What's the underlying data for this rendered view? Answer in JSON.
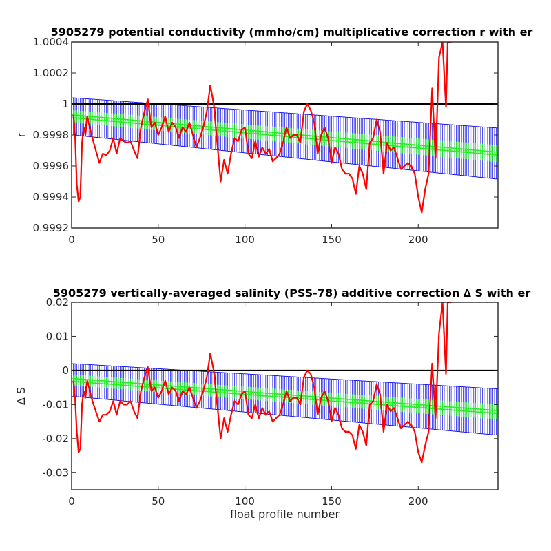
{
  "chart_data": [
    {
      "type": "line",
      "title": "5905279 potential conductivity (mmho/cm) multiplicative correction r with er",
      "xlabel": "",
      "ylabel": "r",
      "xlim": [
        0,
        246
      ],
      "ylim": [
        0.9992,
        1.0004
      ],
      "xticks": [
        0,
        50,
        100,
        150,
        200
      ],
      "yticks": [
        0.9992,
        0.9994,
        0.9996,
        0.9998,
        1,
        1.0002,
        1.0004
      ],
      "ytick_labels": [
        "0.9992",
        "0.9994",
        "0.9996",
        "0.9998",
        "1",
        "1.0002",
        "1.0004"
      ],
      "reference_line": 1,
      "fit": {
        "x_start": 1,
        "x_end": 246,
        "center_start": 0.99992,
        "center_end": 0.99968,
        "err_start": 0.00012,
        "err_end": 0.000165,
        "inner_start": 4e-05,
        "inner_end": 5.5e-05
      },
      "series": [
        {
          "style": "red-line",
          "x": [
            1,
            2,
            3,
            4,
            5,
            6,
            7,
            8,
            9,
            10,
            12,
            14,
            16,
            18,
            20,
            22,
            24,
            26,
            28,
            30,
            32,
            34,
            36,
            38,
            40,
            42,
            44,
            46,
            48,
            50,
            52,
            54,
            56,
            58,
            60,
            62,
            64,
            66,
            68,
            70,
            72,
            74,
            76,
            78,
            80,
            82,
            84,
            86,
            88,
            90,
            92,
            94,
            96,
            98,
            100,
            102,
            104,
            106,
            108,
            110,
            112,
            114,
            116,
            118,
            120,
            122,
            124,
            126,
            128,
            130,
            132,
            134,
            136,
            138,
            140,
            142,
            144,
            146,
            148,
            150,
            152,
            154,
            156,
            158,
            160,
            162,
            164,
            166,
            168,
            170,
            172,
            174,
            176,
            178,
            180,
            182,
            184,
            186,
            188,
            190,
            192,
            194,
            196,
            198,
            200,
            202,
            204,
            206,
            208,
            210,
            212,
            214,
            216,
            217,
            218,
            219
          ],
          "y": [
            0.99993,
            0.9998,
            0.99948,
            0.99937,
            0.9994,
            0.99975,
            0.99985,
            0.9998,
            0.99992,
            0.99987,
            0.99978,
            0.9997,
            0.99962,
            0.99968,
            0.99967,
            0.9997,
            0.99978,
            0.99968,
            0.99978,
            0.99976,
            0.99975,
            0.99976,
            0.9997,
            0.99965,
            0.99985,
            0.99995,
            1.00003,
            0.99985,
            0.99988,
            0.9998,
            0.99985,
            0.99992,
            0.99982,
            0.99988,
            0.99985,
            0.99978,
            0.99985,
            0.99982,
            0.99988,
            0.9998,
            0.99972,
            0.99978,
            0.99985,
            0.99995,
            1.00012,
            1.0,
            0.99975,
            0.9995,
            0.99964,
            0.99955,
            0.99968,
            0.99978,
            0.99976,
            0.99983,
            0.99985,
            0.99968,
            0.99965,
            0.99976,
            0.99966,
            0.99972,
            0.99968,
            0.99971,
            0.99963,
            0.99965,
            0.99968,
            0.99975,
            0.99985,
            0.99978,
            0.9998,
            0.9998,
            0.99975,
            0.99995,
            1.0,
            0.99996,
            0.99988,
            0.99968,
            0.9998,
            0.99985,
            0.99978,
            0.99962,
            0.99972,
            0.99968,
            0.99958,
            0.99955,
            0.99955,
            0.99952,
            0.99942,
            0.9996,
            0.99955,
            0.99945,
            0.99975,
            0.99978,
            0.9999,
            0.99982,
            0.99955,
            0.99975,
            0.9997,
            0.99972,
            0.99965,
            0.99958,
            0.9996,
            0.99962,
            0.9996,
            0.99955,
            0.9994,
            0.9993,
            0.99945,
            0.99955,
            1.0001,
            0.99965,
            1.0003,
            1.0004,
            0.99998,
            1.0004,
            1.0004,
            1.0004
          ]
        }
      ]
    },
    {
      "type": "line",
      "title": "5905279 vertically-averaged salinity (PSS-78) additive correction ∆ S with er",
      "xlabel": "float profile number",
      "ylabel": "∆ S",
      "xlim": [
        0,
        246
      ],
      "ylim": [
        -0.035,
        0.02
      ],
      "xticks": [
        0,
        50,
        100,
        150,
        200
      ],
      "yticks": [
        -0.03,
        -0.02,
        -0.01,
        0,
        0.01,
        0.02
      ],
      "ytick_labels": [
        "-0.03",
        "-0.02",
        "-0.01",
        "0",
        "0.01",
        "0.02"
      ],
      "reference_line": 0,
      "fit": {
        "x_start": 1,
        "x_end": 246,
        "center_start": -0.0028,
        "center_end": -0.0122,
        "err_start": 0.0048,
        "err_end": 0.0068,
        "inner_start": 0.0016,
        "inner_end": 0.0022
      },
      "series": [
        {
          "style": "red-line",
          "x": [
            1,
            2,
            3,
            4,
            5,
            6,
            7,
            8,
            9,
            10,
            12,
            14,
            16,
            18,
            20,
            22,
            24,
            26,
            28,
            30,
            32,
            34,
            36,
            38,
            40,
            42,
            44,
            46,
            48,
            50,
            52,
            54,
            56,
            58,
            60,
            62,
            64,
            66,
            68,
            70,
            72,
            74,
            76,
            78,
            80,
            82,
            84,
            86,
            88,
            90,
            92,
            94,
            96,
            98,
            100,
            102,
            104,
            106,
            108,
            110,
            112,
            114,
            116,
            118,
            120,
            122,
            124,
            126,
            128,
            130,
            132,
            134,
            136,
            138,
            140,
            142,
            144,
            146,
            148,
            150,
            152,
            154,
            156,
            158,
            160,
            162,
            164,
            166,
            168,
            170,
            172,
            174,
            176,
            178,
            180,
            182,
            184,
            186,
            188,
            190,
            192,
            194,
            196,
            198,
            200,
            202,
            204,
            206,
            208,
            210,
            212,
            214,
            216,
            217,
            218,
            219
          ],
          "y": [
            -0.003,
            -0.008,
            -0.018,
            -0.024,
            -0.023,
            -0.01,
            -0.006,
            -0.008,
            -0.003,
            -0.005,
            -0.009,
            -0.012,
            -0.015,
            -0.013,
            -0.013,
            -0.012,
            -0.009,
            -0.013,
            -0.009,
            -0.01,
            -0.01,
            -0.009,
            -0.012,
            -0.014,
            -0.006,
            -0.002,
            0.001,
            -0.006,
            -0.005,
            -0.008,
            -0.006,
            -0.003,
            -0.007,
            -0.005,
            -0.006,
            -0.009,
            -0.006,
            -0.007,
            -0.005,
            -0.008,
            -0.011,
            -0.009,
            -0.006,
            -0.002,
            0.005,
            0.0,
            -0.01,
            -0.02,
            -0.014,
            -0.018,
            -0.013,
            -0.009,
            -0.01,
            -0.007,
            -0.006,
            -0.013,
            -0.014,
            -0.01,
            -0.014,
            -0.011,
            -0.013,
            -0.012,
            -0.015,
            -0.014,
            -0.013,
            -0.01,
            -0.006,
            -0.009,
            -0.008,
            -0.008,
            -0.01,
            -0.002,
            0.0,
            -0.001,
            -0.005,
            -0.013,
            -0.008,
            -0.006,
            -0.009,
            -0.015,
            -0.011,
            -0.013,
            -0.017,
            -0.018,
            -0.018,
            -0.019,
            -0.023,
            -0.016,
            -0.018,
            -0.022,
            -0.01,
            -0.009,
            -0.004,
            -0.007,
            -0.018,
            -0.01,
            -0.012,
            -0.011,
            -0.014,
            -0.017,
            -0.016,
            -0.015,
            -0.016,
            -0.018,
            -0.024,
            -0.027,
            -0.022,
            -0.018,
            0.002,
            -0.014,
            0.011,
            0.02,
            -0.001,
            0.02,
            0.02,
            0.02
          ]
        }
      ]
    }
  ]
}
